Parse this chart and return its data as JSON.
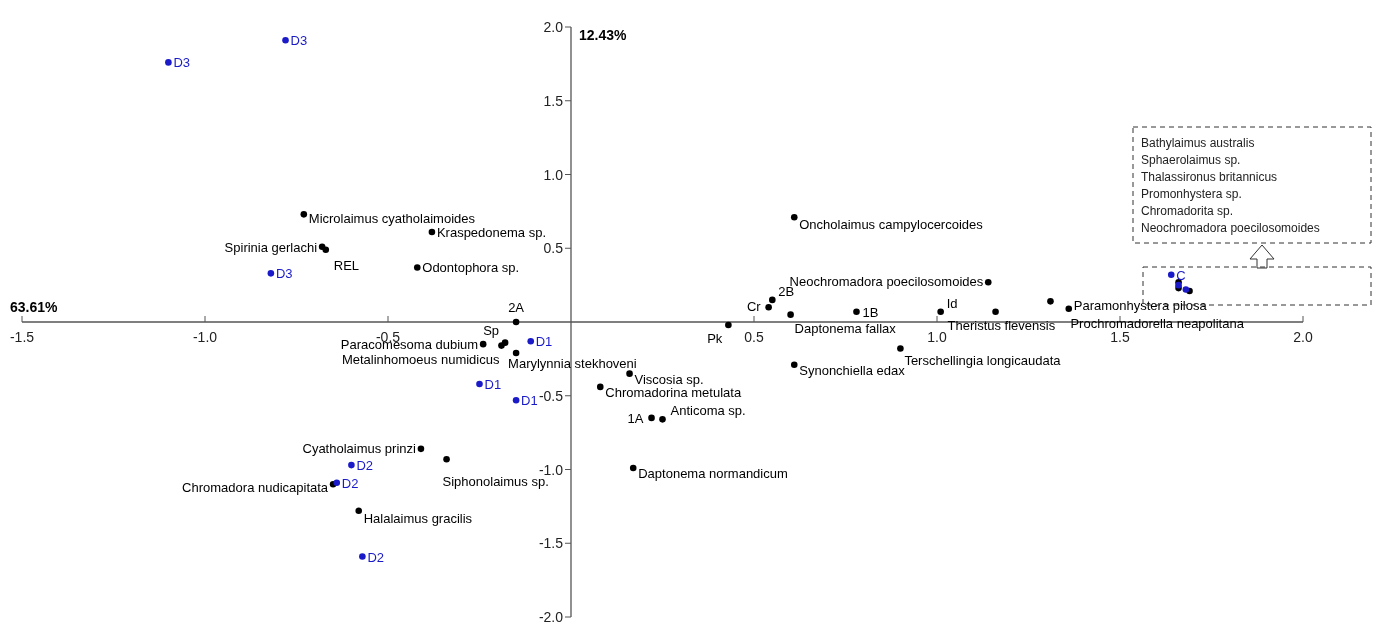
{
  "chart_data": {
    "type": "scatter",
    "xlabel": "63.61%",
    "ylabel": "12.43%",
    "xlim": [
      -1.5,
      2.0
    ],
    "ylim": [
      -2.0,
      2.0
    ],
    "xticks": [
      {
        "value": -1.5,
        "label": "-1.5"
      },
      {
        "value": -1.0,
        "label": "-1.0"
      },
      {
        "value": -0.5,
        "label": "-0.5"
      },
      {
        "value": 0.5,
        "label": "0.5"
      },
      {
        "value": 1.0,
        "label": "1.0"
      },
      {
        "value": 1.5,
        "label": "1.5"
      },
      {
        "value": 2.0,
        "label": "2.0"
      }
    ],
    "yticks": [
      {
        "value": -2.0,
        "label": "-2.0"
      },
      {
        "value": -1.5,
        "label": "-1.5"
      },
      {
        "value": -1.0,
        "label": "-1.0"
      },
      {
        "value": -0.5,
        "label": "-0.5"
      },
      {
        "value": 0.5,
        "label": "0.5"
      },
      {
        "value": 1.0,
        "label": "1.0"
      },
      {
        "value": 1.5,
        "label": "1.5"
      },
      {
        "value": 2.0,
        "label": "2.0"
      }
    ],
    "grid": false,
    "marker": "circle",
    "series": [
      {
        "color": "#000000",
        "x": [
          -0.73,
          -0.68,
          -0.38,
          -0.42,
          0.61,
          1.14,
          0.6,
          1.16,
          1.31,
          1.36,
          0.9,
          0.61,
          0.16,
          0.08,
          0.25,
          0.17,
          -0.34,
          -0.41,
          -0.15,
          -0.19,
          -0.24,
          -0.58,
          -0.65,
          1.66,
          1.69,
          1.66
        ],
        "values": [
          0.73,
          0.51,
          0.61,
          0.37,
          0.71,
          0.27,
          0.05,
          0.07,
          0.14,
          0.09,
          -0.18,
          -0.29,
          -0.35,
          -0.44,
          -0.66,
          -0.99,
          -0.93,
          -0.86,
          -0.21,
          -0.16,
          -0.15,
          -1.28,
          -1.1,
          0.27,
          0.21,
          0.23
        ]
      },
      {
        "color": "#000000",
        "x": [
          0.54,
          1.01,
          0.43,
          -0.18,
          -0.67
        ],
        "values": [
          0.1,
          0.07,
          -0.02,
          -0.14,
          0.49
        ]
      },
      {
        "color": "#000000",
        "x": [
          -0.15,
          0.55,
          0.78,
          0.22
        ],
        "values": [
          0.0,
          0.15,
          0.07,
          -0.65
        ]
      },
      {
        "color": "#1a1ac8",
        "x": [
          -1.1,
          -0.78,
          -0.82,
          -0.11,
          -0.25,
          -0.15,
          -0.6,
          -0.64,
          -0.57,
          1.64,
          1.66,
          1.68
        ],
        "values": [
          1.76,
          1.91,
          0.33,
          -0.13,
          -0.42,
          -0.53,
          -0.97,
          -1.09,
          -1.59,
          0.32,
          0.25,
          0.22
        ]
      }
    ],
    "annotations": [
      {
        "text": "Microlaimus cyatholaimoides",
        "x": -0.73,
        "y": 0.73
      },
      {
        "text": "Spirinia gerlachi",
        "x": -0.68,
        "y": 0.51
      },
      {
        "text": "Kraspedonema sp.",
        "x": -0.38,
        "y": 0.61
      },
      {
        "text": "Odontophora sp.",
        "x": -0.42,
        "y": 0.37
      },
      {
        "text": "Oncholaimus campylocercoides",
        "x": 0.61,
        "y": 0.71
      },
      {
        "text": "Neochromadora poecilosomoides",
        "x": 1.14,
        "y": 0.27
      },
      {
        "text": "Daptonema fallax",
        "x": 0.6,
        "y": 0.05
      },
      {
        "text": "Theristus flevensis",
        "x": 1.16,
        "y": 0.07
      },
      {
        "text": "Prochromadorella neapolitana",
        "x": 1.31,
        "y": 0.14
      },
      {
        "text": "Paramonhystera pilosa",
        "x": 1.36,
        "y": 0.09
      },
      {
        "text": "Terschellingia longicaudata",
        "x": 0.9,
        "y": -0.18
      },
      {
        "text": "Synonchiella edax",
        "x": 0.61,
        "y": -0.29
      },
      {
        "text": "Viscosia sp.",
        "x": 0.16,
        "y": -0.35
      },
      {
        "text": "Chromadorina metulata",
        "x": 0.08,
        "y": -0.44
      },
      {
        "text": "Anticoma sp.",
        "x": 0.25,
        "y": -0.66
      },
      {
        "text": "Daptonema normandicum",
        "x": 0.17,
        "y": -0.99
      },
      {
        "text": "Siphonolaimus sp.",
        "x": -0.34,
        "y": -0.93
      },
      {
        "text": "Cyatholaimus prinzi",
        "x": -0.41,
        "y": -0.86
      },
      {
        "text": "Marylynnia stekhoveni",
        "x": -0.15,
        "y": -0.21
      },
      {
        "text": "Metalinhomoeus numidicus",
        "x": -0.19,
        "y": -0.16
      },
      {
        "text": "Paracomesoma dubium",
        "x": -0.24,
        "y": -0.15
      },
      {
        "text": "Halalaimus gracilis",
        "x": -0.58,
        "y": -1.28
      },
      {
        "text": "Chromadora nudicapitata",
        "x": -0.65,
        "y": -1.1
      },
      {
        "text": "Cr",
        "x": 0.54,
        "y": 0.1
      },
      {
        "text": "Id",
        "x": 1.01,
        "y": 0.07
      },
      {
        "text": "Pk",
        "x": 0.43,
        "y": -0.02
      },
      {
        "text": "Sp",
        "x": -0.18,
        "y": -0.14
      },
      {
        "text": "REL",
        "x": -0.67,
        "y": 0.49
      },
      {
        "text": "2A",
        "x": -0.15,
        "y": 0.0
      },
      {
        "text": "2B",
        "x": 0.55,
        "y": 0.15
      },
      {
        "text": "1B",
        "x": 0.78,
        "y": 0.07
      },
      {
        "text": "1A",
        "x": 0.22,
        "y": -0.65
      },
      {
        "text": "D3",
        "x": -1.1,
        "y": 1.76
      },
      {
        "text": "D3",
        "x": -0.78,
        "y": 1.91
      },
      {
        "text": "D3",
        "x": -0.82,
        "y": 0.33
      },
      {
        "text": "D1",
        "x": -0.11,
        "y": -0.13
      },
      {
        "text": "D1",
        "x": -0.25,
        "y": -0.42
      },
      {
        "text": "D1",
        "x": -0.15,
        "y": -0.53
      },
      {
        "text": "D2",
        "x": -0.6,
        "y": -0.97
      },
      {
        "text": "D2",
        "x": -0.64,
        "y": -1.09
      },
      {
        "text": "D2",
        "x": -0.57,
        "y": -1.59
      },
      {
        "text": "C",
        "x": 1.64,
        "y": 0.32
      },
      "Bathylaimus australis",
      "Sphaerolaimus sp.",
      "Thalassironus britannicus",
      "Promonhystera sp.",
      "Chromadorita sp.",
      "Neochromadora poecilosomoides"
    ]
  }
}
